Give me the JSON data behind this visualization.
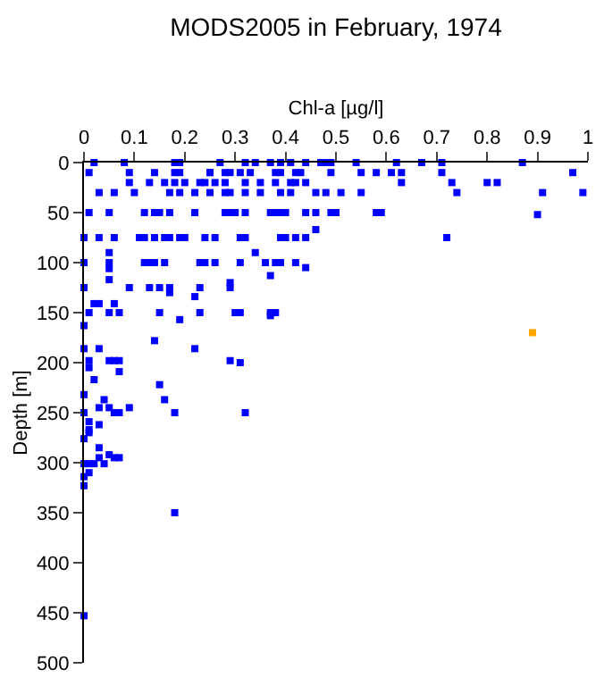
{
  "chart_data": {
    "type": "scatter",
    "title": "MODS2005 in February, 1974",
    "xlabel": "Chl-a [µg/l]",
    "ylabel": "Depth [m]",
    "xlim": [
      0,
      1
    ],
    "xticks": [
      0,
      0.1,
      0.2,
      0.3,
      0.4,
      0.5,
      0.6,
      0.7,
      0.8,
      0.9,
      1
    ],
    "ylim": [
      500,
      0
    ],
    "yticks": [
      0,
      50,
      100,
      150,
      200,
      250,
      300,
      350,
      400,
      450,
      500
    ],
    "marker": "square",
    "series": [
      {
        "color": "#0000ff",
        "x": [
          0.02,
          0.08,
          0.18,
          0.19,
          0.27,
          0.32,
          0.34,
          0.37,
          0.39,
          0.41,
          0.44,
          0.47,
          0.48,
          0.49,
          0.54,
          0.62,
          0.67,
          0.71,
          0.87,
          0.01,
          0.09,
          0.14,
          0.18,
          0.19,
          0.25,
          0.25,
          0.28,
          0.29,
          0.31,
          0.33,
          0.38,
          0.39,
          0.42,
          0.43,
          0.49,
          0.55,
          0.58,
          0.61,
          0.63,
          0.71,
          0.97,
          0.09,
          0.13,
          0.16,
          0.18,
          0.2,
          0.23,
          0.24,
          0.26,
          0.28,
          0.32,
          0.35,
          0.38,
          0.41,
          0.42,
          0.44,
          0.63,
          0.73,
          0.8,
          0.82,
          0.03,
          0.06,
          0.1,
          0.17,
          0.19,
          0.22,
          0.25,
          0.28,
          0.29,
          0.32,
          0.35,
          0.39,
          0.41,
          0.46,
          0.48,
          0.51,
          0.55,
          0.74,
          0.91,
          0.99,
          0.01,
          0.05,
          0.12,
          0.14,
          0.15,
          0.17,
          0.22,
          0.28,
          0.29,
          0.3,
          0.32,
          0.37,
          0.38,
          0.39,
          0.4,
          0.44,
          0.46,
          0.49,
          0.5,
          0.58,
          0.59,
          0.9,
          0,
          0.03,
          0.06,
          0.11,
          0.12,
          0.14,
          0.16,
          0.17,
          0.19,
          0.2,
          0.24,
          0.26,
          0.31,
          0.32,
          0.39,
          0.4,
          0.42,
          0.44,
          0.72,
          0,
          0.05,
          0.12,
          0.13,
          0.14,
          0.16,
          0.23,
          0.24,
          0.26,
          0.31,
          0.36,
          0.38,
          0.39,
          0.42,
          0.05,
          0.46,
          0.34,
          0.44,
          0.37,
          0.05,
          0.05,
          0,
          0.09,
          0.13,
          0.15,
          0.17,
          0.23,
          0.29,
          0.29,
          0.17,
          0.22,
          0.02,
          0.03,
          0.06,
          0.01,
          0.05,
          0.07,
          0.15,
          0.23,
          0.3,
          0.31,
          0.37,
          0.38,
          0.37,
          0.19,
          0,
          0.14,
          0,
          0.03,
          0.22,
          0.01,
          0.05,
          0.06,
          0.07,
          0.29,
          0.31,
          0.01,
          0.07,
          0.02,
          0.15,
          0,
          0.04,
          0.16,
          0.03,
          0.05,
          0.09,
          0,
          0.06,
          0.07,
          0.18,
          0.32,
          0.01,
          0.03,
          0.01,
          0.01,
          0,
          0.03,
          0.05,
          0.03,
          0.06,
          0.07,
          0,
          0.01,
          0.02,
          0.04,
          0.01,
          0,
          0,
          0.18,
          0
        ],
        "values": [
          0,
          0,
          0,
          0,
          0,
          0,
          0,
          0,
          0,
          0,
          0,
          0,
          0,
          0,
          0,
          0,
          0,
          0,
          0,
          10,
          10,
          10,
          10,
          10,
          10,
          10,
          10,
          10,
          10,
          10,
          10,
          10,
          10,
          10,
          10,
          10,
          10,
          10,
          10,
          10,
          10,
          20,
          20,
          20,
          20,
          20,
          20,
          20,
          20,
          20,
          20,
          20,
          20,
          20,
          20,
          20,
          20,
          20,
          20,
          20,
          30,
          30,
          30,
          30,
          30,
          30,
          30,
          30,
          30,
          30,
          30,
          30,
          30,
          30,
          30,
          30,
          30,
          30,
          30,
          30,
          50,
          50,
          50,
          50,
          50,
          50,
          50,
          50,
          50,
          50,
          50,
          50,
          50,
          50,
          50,
          50,
          50,
          50,
          50,
          50,
          50,
          52,
          75,
          75,
          75,
          75,
          75,
          75,
          75,
          75,
          75,
          75,
          75,
          75,
          75,
          75,
          75,
          75,
          75,
          75,
          75,
          100,
          100,
          100,
          100,
          100,
          100,
          100,
          100,
          100,
          100,
          100,
          100,
          100,
          100,
          90,
          67,
          90,
          105,
          113,
          106,
          117,
          125,
          125,
          125,
          125,
          125,
          125,
          125,
          120,
          130,
          134,
          141,
          141,
          141,
          150,
          150,
          150,
          150,
          150,
          150,
          150,
          150,
          150,
          153,
          157,
          163,
          178,
          186,
          186,
          186,
          198,
          198,
          198,
          198,
          198,
          200,
          205,
          209,
          217,
          222,
          232,
          237,
          237,
          245,
          245,
          245,
          250,
          250,
          250,
          250,
          250,
          259,
          262,
          267,
          270,
          276,
          285,
          292,
          295,
          295,
          295,
          301,
          301,
          301,
          301,
          310,
          314,
          323,
          350,
          453
        ]
      },
      {
        "color": "#ffa500",
        "x": [
          0.89
        ],
        "values": [
          170
        ]
      }
    ]
  }
}
